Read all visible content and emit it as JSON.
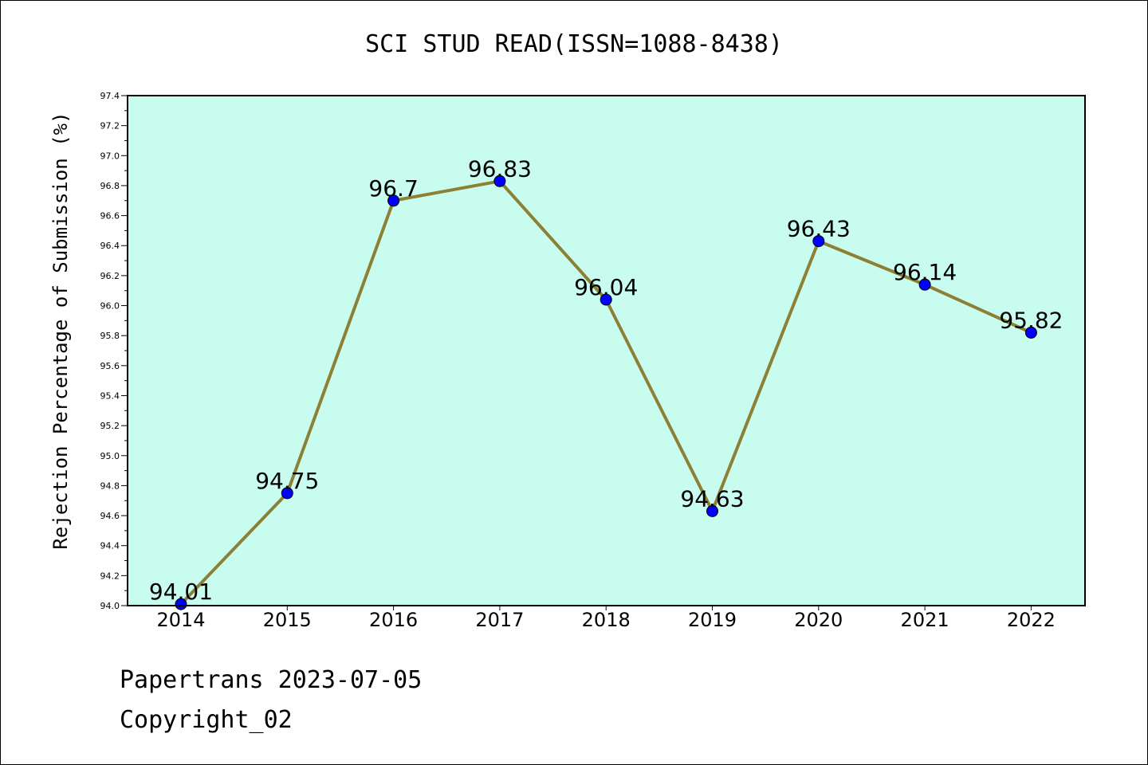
{
  "chart_data": {
    "type": "line",
    "title": "SCI STUD READ(ISSN=1088-8438)",
    "ylabel": "Rejection Percentage of Submission (%)",
    "xlabel": "",
    "categories": [
      "2014",
      "2015",
      "2016",
      "2017",
      "2018",
      "2019",
      "2020",
      "2021",
      "2022"
    ],
    "values": [
      94.01,
      94.75,
      96.7,
      96.83,
      96.04,
      94.63,
      96.43,
      96.14,
      95.82
    ],
    "data_labels": [
      "94.01",
      "94.75",
      "96.7",
      "96.83",
      "96.04",
      "94.63",
      "96.43",
      "96.14",
      "95.82"
    ],
    "ylim": [
      94.0,
      97.4
    ],
    "yticks": [
      "94.0",
      "94.2",
      "94.4",
      "94.6",
      "94.8",
      "95.0",
      "95.2",
      "95.4",
      "95.6",
      "95.8",
      "96.0",
      "96.2",
      "96.4",
      "96.6",
      "96.8",
      "97.0",
      "97.2",
      "97.4"
    ],
    "grid": false,
    "colors": {
      "plot_background": "#c8fcee",
      "line": "#8c8035",
      "marker": "#0000ff"
    }
  },
  "footer": {
    "line1": "Papertrans 2023-07-05",
    "line2": "Copyright_02"
  }
}
